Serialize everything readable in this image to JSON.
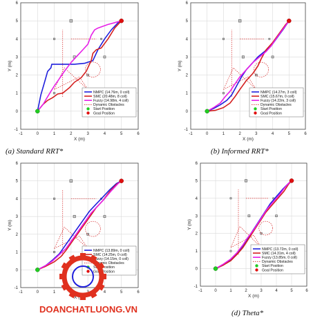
{
  "figure": {
    "watermark": "DOANCHATLUONG.VN"
  },
  "chart_data": [
    {
      "type": "line",
      "caption": "(a) Standard RRT*",
      "xlabel": "X (m)",
      "ylabel": "Y (m)",
      "xlim": [
        -1,
        6
      ],
      "ylim": [
        -1,
        6
      ],
      "xticks": [
        -1,
        0,
        1,
        2,
        3,
        4,
        5,
        6
      ],
      "yticks": [
        -1,
        0,
        1,
        2,
        3,
        4,
        5,
        6
      ],
      "grid": true,
      "legend_position": "lower-right",
      "start": [
        0,
        0
      ],
      "goal": [
        5,
        5
      ],
      "series": [
        {
          "name": "NMPC (14.76m, 0 coll)",
          "color": "#1f1fdc",
          "style": "solid",
          "x": [
            0,
            0.2,
            0.45,
            0.6,
            0.8,
            0.85,
            0.95,
            1.5,
            2.2,
            2.8,
            3.3,
            3.6,
            4.0,
            4.4,
            4.8,
            5.0
          ],
          "y": [
            0,
            0.9,
            1.7,
            2.2,
            2.4,
            2.6,
            2.6,
            2.6,
            2.6,
            2.65,
            2.8,
            3.4,
            4.0,
            4.5,
            4.9,
            5.0
          ]
        },
        {
          "name": "SMC (20.48m, 8 coll)",
          "color": "#d41f1f",
          "style": "solid",
          "x": [
            0,
            0.3,
            0.6,
            0.9,
            1.2,
            1.5,
            1.9,
            2.2,
            2.6,
            2.9,
            3.2,
            3.3,
            3.5,
            3.8,
            4.2,
            4.6,
            5.0
          ],
          "y": [
            0,
            0.35,
            0.6,
            0.75,
            0.95,
            1.0,
            1.3,
            1.6,
            1.85,
            2.2,
            2.8,
            3.2,
            3.4,
            3.5,
            4.0,
            4.6,
            5.0
          ]
        },
        {
          "name": "Fuzzy (14.98m, 4 coll)",
          "color": "#e71fe7",
          "style": "solid",
          "x": [
            0,
            0.35,
            0.6,
            0.8,
            1.0,
            1.3,
            1.6,
            2.0,
            2.4,
            2.7,
            3.0,
            3.2,
            3.4,
            3.6,
            3.9,
            4.2,
            4.6,
            5.0
          ],
          "y": [
            0,
            0.4,
            0.8,
            1.1,
            1.4,
            1.8,
            2.2,
            2.7,
            3.1,
            3.4,
            3.7,
            4.2,
            4.5,
            4.6,
            4.7,
            4.8,
            4.9,
            5.0
          ]
        }
      ],
      "obstacle_legend": "Dynamic Obstacles",
      "start_legend": "Start Position",
      "goal_legend": "Goal Position"
    },
    {
      "type": "line",
      "caption": "(b) Informed RRT*",
      "xlabel": "X (m)",
      "ylabel": "Y (m)",
      "xlim": [
        -1,
        6
      ],
      "ylim": [
        -1,
        6
      ],
      "xticks": [
        -1,
        0,
        1,
        2,
        3,
        4,
        5,
        6
      ],
      "yticks": [
        -1,
        0,
        1,
        2,
        3,
        4,
        5,
        6
      ],
      "grid": true,
      "legend_position": "lower-right",
      "start": [
        0,
        0
      ],
      "goal": [
        5,
        5
      ],
      "series": [
        {
          "name": "NMPC (14.27m, 3 coll)",
          "color": "#1f1fdc",
          "style": "solid",
          "x": [
            0,
            0.4,
            0.8,
            1.2,
            1.5,
            1.8,
            2.1,
            2.4,
            2.8,
            3.1,
            3.5,
            3.9,
            4.3,
            4.7,
            5.0
          ],
          "y": [
            0,
            0.15,
            0.35,
            0.6,
            0.9,
            1.4,
            1.9,
            2.3,
            2.7,
            3.0,
            3.3,
            3.6,
            4.1,
            4.6,
            5.0
          ]
        },
        {
          "name": "SMC (15.67m, 0 coll)",
          "color": "#d41f1f",
          "style": "solid",
          "x": [
            0,
            0.5,
            1.0,
            1.4,
            1.7,
            2.0,
            2.4,
            2.8,
            3.1,
            3.3,
            3.6,
            4.0,
            4.4,
            4.8,
            5.0
          ],
          "y": [
            0,
            0.05,
            0.2,
            0.45,
            0.8,
            1.2,
            1.7,
            2.1,
            2.5,
            2.9,
            3.4,
            3.8,
            4.3,
            4.8,
            5.0
          ]
        },
        {
          "name": "Fuzzy (14.22m, 3 coll)",
          "color": "#e71fe7",
          "style": "solid",
          "x": [
            0,
            0.4,
            0.8,
            1.1,
            1.4,
            1.7,
            2.0,
            2.4,
            2.8,
            3.2,
            3.6,
            3.9,
            4.2,
            4.6,
            5.0
          ],
          "y": [
            0,
            0.2,
            0.45,
            0.8,
            1.1,
            1.5,
            1.9,
            2.3,
            2.7,
            3.0,
            3.3,
            3.6,
            4.0,
            4.5,
            5.0
          ]
        }
      ],
      "obstacle_legend": "Dynamic Obstacles",
      "start_legend": "Start Position",
      "goal_legend": "Goal Position"
    },
    {
      "type": "line",
      "caption": "",
      "xlabel": "X (m)",
      "ylabel": "Y (m)",
      "xlim": [
        -1,
        6
      ],
      "ylim": [
        -1,
        6
      ],
      "xticks": [
        -1,
        0,
        1,
        2,
        3,
        4,
        5,
        6
      ],
      "yticks": [
        -1,
        0,
        1,
        2,
        3,
        4,
        5,
        6
      ],
      "grid": true,
      "legend_position": "lower-right",
      "start": [
        0,
        0
      ],
      "goal": [
        5,
        5
      ],
      "series": [
        {
          "name": "NMPC (13.89m, 0 coll)",
          "color": "#1f1fdc",
          "style": "solid",
          "x": [
            0,
            0.5,
            0.9,
            1.3,
            1.6,
            1.9,
            2.2,
            2.5,
            2.8,
            3.1,
            3.5,
            3.9,
            4.3,
            4.7,
            5.0
          ],
          "y": [
            0,
            0.25,
            0.55,
            0.9,
            1.3,
            1.7,
            2.1,
            2.5,
            2.9,
            3.3,
            3.7,
            4.1,
            4.5,
            4.85,
            5.0
          ]
        },
        {
          "name": "SMC (14.25m, 0 coll)",
          "color": "#d41f1f",
          "style": "solid",
          "x": [
            0,
            0.5,
            1.0,
            1.4,
            1.7,
            2.0,
            2.3,
            2.6,
            2.9,
            3.2,
            3.5,
            3.9,
            4.3,
            4.7,
            5.0
          ],
          "y": [
            0,
            0.2,
            0.45,
            0.75,
            1.1,
            1.5,
            1.9,
            2.3,
            2.7,
            3.1,
            3.5,
            3.9,
            4.4,
            4.8,
            5.0
          ]
        },
        {
          "name": "Fuzzy (14.15m, 0 coll)",
          "color": "#e71fe7",
          "style": "solid",
          "x": [
            0,
            0.5,
            0.9,
            1.3,
            1.7,
            2.0,
            2.3,
            2.6,
            2.9,
            3.2,
            3.6,
            4.0,
            4.4,
            4.8,
            5.0
          ],
          "y": [
            0,
            0.25,
            0.5,
            0.85,
            1.2,
            1.6,
            2.0,
            2.4,
            2.8,
            3.2,
            3.6,
            4.0,
            4.45,
            4.85,
            5.0
          ]
        }
      ],
      "obstacle_legend": "Dynamic Obstacles",
      "start_legend": "Start Position",
      "goal_legend": "Goal Position"
    },
    {
      "type": "line",
      "caption": "(d) Theta*",
      "xlabel": "X (m)",
      "ylabel": "Y (m)",
      "xlim": [
        -1,
        6
      ],
      "ylim": [
        -1,
        6
      ],
      "xticks": [
        -1,
        0,
        1,
        2,
        3,
        4,
        5,
        6
      ],
      "yticks": [
        -1,
        0,
        1,
        2,
        3,
        4,
        5,
        6
      ],
      "grid": true,
      "legend_position": "lower-right",
      "start": [
        0,
        0
      ],
      "goal": [
        5,
        5
      ],
      "series": [
        {
          "name": "NMPC (13.72m, 0 coll)",
          "color": "#1f1fdc",
          "style": "solid",
          "x": [
            0,
            0.5,
            1.0,
            1.4,
            1.8,
            2.1,
            2.4,
            2.7,
            3.0,
            3.3,
            3.6,
            4.0,
            4.4,
            4.8,
            5.0
          ],
          "y": [
            0,
            0.2,
            0.5,
            0.85,
            1.3,
            1.7,
            2.1,
            2.5,
            2.9,
            3.3,
            3.7,
            4.1,
            4.5,
            4.85,
            5.0
          ]
        },
        {
          "name": "SMC (14.31m, 4 coll)",
          "color": "#d41f1f",
          "style": "solid",
          "x": [
            0,
            0.5,
            1.0,
            1.4,
            1.8,
            2.1,
            2.4,
            2.7,
            3.0,
            3.3,
            3.7,
            4.1,
            4.5,
            4.8,
            5.0
          ],
          "y": [
            0,
            0.2,
            0.45,
            0.8,
            1.2,
            1.6,
            2.0,
            2.4,
            2.8,
            3.2,
            3.6,
            4.0,
            4.4,
            4.8,
            5.0
          ]
        },
        {
          "name": "Fuzzy (13.85m, 0 coll)",
          "color": "#e71fe7",
          "style": "solid",
          "x": [
            0,
            0.5,
            1.0,
            1.4,
            1.8,
            2.1,
            2.5,
            2.8,
            3.1,
            3.4,
            3.8,
            4.2,
            4.5,
            4.8,
            5.0
          ],
          "y": [
            0,
            0.25,
            0.55,
            0.9,
            1.35,
            1.75,
            2.2,
            2.6,
            3.0,
            3.4,
            3.8,
            4.2,
            4.55,
            4.85,
            5.0
          ]
        }
      ],
      "obstacle_legend": "Dynamic Obstacles",
      "start_legend": "Start Position",
      "goal_legend": "Goal Position"
    }
  ]
}
